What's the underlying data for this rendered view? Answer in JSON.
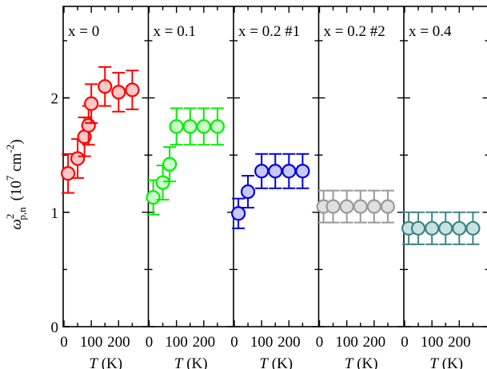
{
  "chart_data": {
    "type": "scatter",
    "ylabel": {
      "symbol": "ω",
      "superscript": "2",
      "subscript": "p,n",
      "unit_prefix": "(10",
      "unit_exp": "7",
      "unit_mid": " cm",
      "unit_exp2": "-2",
      "unit_suffix": ")"
    },
    "xlabel": {
      "symbol": "T",
      "unit": " (K)"
    },
    "ylim": [
      0,
      2.8
    ],
    "yticks": [
      "0",
      "1",
      "2"
    ],
    "xlim": [
      0,
      300
    ],
    "xticks": [
      "0",
      "100",
      "200"
    ],
    "grid": false,
    "panels": [
      {
        "label": "x = 0",
        "color": "#ff0000",
        "fill": "#ffc8c8",
        "x": [
          15,
          50,
          75,
          90,
          100,
          150,
          200,
          250
        ],
        "y": [
          1.34,
          1.47,
          1.66,
          1.76,
          1.95,
          2.1,
          2.05,
          2.07
        ],
        "err": [
          0.17,
          0.17,
          0.17,
          0.17,
          0.17,
          0.17,
          0.17,
          0.17
        ]
      },
      {
        "label": "x = 0.1",
        "color": "#00ee00",
        "fill": "#ccffcc",
        "x": [
          15,
          50,
          75,
          100,
          150,
          200,
          250
        ],
        "y": [
          1.13,
          1.26,
          1.42,
          1.75,
          1.75,
          1.75,
          1.75
        ],
        "err": [
          0.15,
          0.15,
          0.15,
          0.16,
          0.16,
          0.16,
          0.16
        ]
      },
      {
        "label": "x = 0.2 #1",
        "color": "#0000dd",
        "fill": "#c8c8ff",
        "x": [
          15,
          50,
          100,
          150,
          200,
          250
        ],
        "y": [
          0.99,
          1.18,
          1.36,
          1.36,
          1.36,
          1.36
        ],
        "err": [
          0.13,
          0.14,
          0.15,
          0.15,
          0.15,
          0.15
        ]
      },
      {
        "label": "x = 0.2 #2",
        "color": "#999999",
        "fill": "#e0e0e0",
        "x": [
          15,
          50,
          100,
          150,
          200,
          250
        ],
        "y": [
          1.05,
          1.05,
          1.05,
          1.05,
          1.05,
          1.05
        ],
        "err": [
          0.14,
          0.14,
          0.14,
          0.14,
          0.14,
          0.14
        ]
      },
      {
        "label": "x = 0.4",
        "color": "#3d8585",
        "fill": "#c8e2e2",
        "x": [
          15,
          50,
          100,
          150,
          200,
          250
        ],
        "y": [
          0.86,
          0.86,
          0.86,
          0.86,
          0.86,
          0.86
        ],
        "err": [
          0.14,
          0.14,
          0.14,
          0.14,
          0.14,
          0.14
        ]
      }
    ]
  }
}
